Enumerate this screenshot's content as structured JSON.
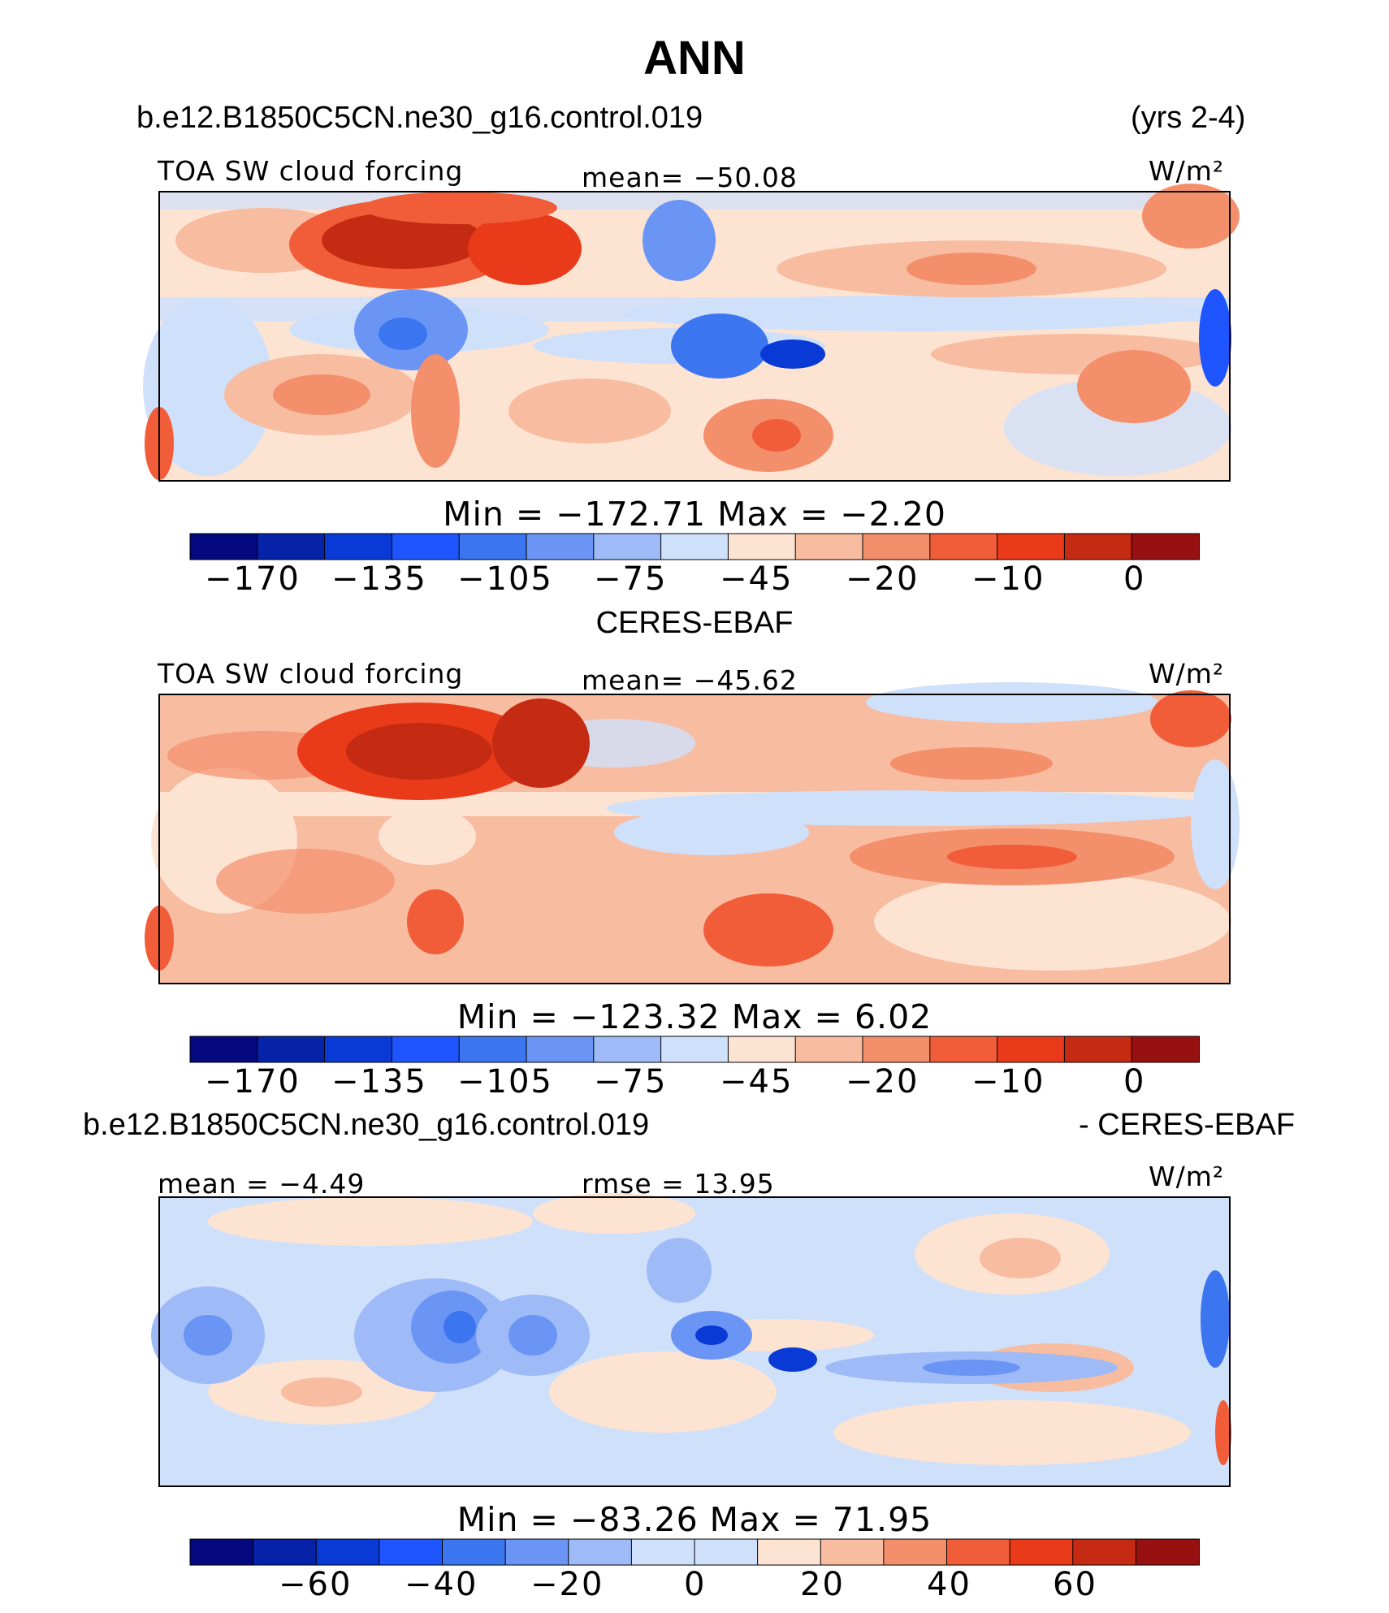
{
  "page": {
    "title": "ANN"
  },
  "colors": {
    "scale": [
      "#040980",
      "#0522a8",
      "#0a3ad6",
      "#1f55ff",
      "#3c75f0",
      "#6a95f5",
      "#9ebaf7",
      "#cfe0fb",
      "#fde3d2",
      "#f8bca0",
      "#f48f6c",
      "#f15d39",
      "#e93b1a",
      "#c52b12",
      "#981111"
    ]
  },
  "panels": [
    {
      "header_left": "b.e12.B1850C5CN.ne30_g16.control.019",
      "header_right": "(yrs 2-4)",
      "variable": "TOA SW cloud forcing",
      "stat_left": "",
      "stat_center": "mean=  −50.08",
      "units": "W/m²",
      "minmax": "Min  =  −172.71  Max  =    −2.20",
      "ticks": [
        "−170",
        "−135",
        "−105",
        "−75",
        "−45",
        "−20",
        "−10",
        "0"
      ]
    },
    {
      "header_left": "CERES-EBAF",
      "header_right": "",
      "variable": "TOA SW cloud forcing",
      "stat_left": "",
      "stat_center": "mean=  −45.62",
      "units": "W/m²",
      "minmax": "Min  =  −123.32  Max  =     6.02",
      "ticks": [
        "−170",
        "−135",
        "−105",
        "−75",
        "−45",
        "−20",
        "−10",
        "0"
      ]
    },
    {
      "header_left": "b.e12.B1850C5CN.ne30_g16.control.019",
      "header_right": "- CERES-EBAF",
      "variable": "",
      "stat_left": "mean  =   −4.49",
      "stat_center": "rmse  =   13.95",
      "units": "W/m²",
      "minmax": "Min  =  −83.26  Max  =   71.95",
      "ticks": [
        "−60",
        "−40",
        "−20",
        "0",
        "20",
        "40",
        "60"
      ]
    }
  ],
  "chart_data": [
    {
      "type": "heatmap",
      "title": "b.e12.B1850C5CN.ne30_g16.control.019",
      "variable": "TOA SW cloud forcing",
      "units": "W/m²",
      "mean": -50.08,
      "min": -172.71,
      "max": -2.2,
      "colorbar_ticks": [
        -170,
        -135,
        -105,
        -75,
        -45,
        -20,
        -10,
        0
      ],
      "field": "annual mean global map (lon x lat)"
    },
    {
      "type": "heatmap",
      "title": "CERES-EBAF",
      "variable": "TOA SW cloud forcing",
      "units": "W/m²",
      "mean": -45.62,
      "min": -123.32,
      "max": 6.02,
      "colorbar_ticks": [
        -170,
        -135,
        -105,
        -75,
        -45,
        -20,
        -10,
        0
      ],
      "field": "annual mean global map (lon x lat)"
    },
    {
      "type": "heatmap",
      "title": "b.e12.B1850C5CN.ne30_g16.control.019 - CERES-EBAF",
      "units": "W/m²",
      "mean": -4.49,
      "rmse": 13.95,
      "min": -83.26,
      "max": 71.95,
      "colorbar_ticks": [
        -60,
        -40,
        -20,
        0,
        20,
        40,
        60
      ],
      "field": "annual mean difference map (lon x lat)"
    }
  ]
}
